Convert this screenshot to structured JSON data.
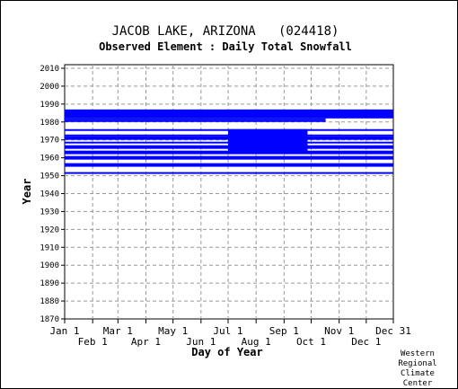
{
  "chart_data": {
    "type": "heatmap",
    "title": "JACOB LAKE, ARIZONA   (024418)",
    "subtitle": "Observed Element : Daily Total Snowfall",
    "xlabel": "Day of Year",
    "ylabel": "Year",
    "xlim": [
      1,
      365
    ],
    "ylim": [
      1870,
      2012
    ],
    "y_ticks": [
      1870,
      1880,
      1890,
      1900,
      1910,
      1920,
      1930,
      1940,
      1950,
      1960,
      1970,
      1980,
      1990,
      2000,
      2010
    ],
    "x_ticks_upper": [
      {
        "label": "Jan 1",
        "day": 1
      },
      {
        "label": "Mar 1",
        "day": 60
      },
      {
        "label": "May 1",
        "day": 121
      },
      {
        "label": "Jul 1",
        "day": 182
      },
      {
        "label": "Sep 1",
        "day": 244
      },
      {
        "label": "Nov 1",
        "day": 305
      },
      {
        "label": "Dec 31",
        "day": 365
      }
    ],
    "x_ticks_lower": [
      {
        "label": "Feb 1",
        "day": 32
      },
      {
        "label": "Apr 1",
        "day": 91
      },
      {
        "label": "Jun 1",
        "day": 152
      },
      {
        "label": "Aug 1",
        "day": 213
      },
      {
        "label": "Oct 1",
        "day": 274
      },
      {
        "label": "Dec 1",
        "day": 335
      }
    ],
    "grid": true,
    "color": "#0000ff",
    "data_coverage": [
      {
        "year_start": 1982,
        "year_end": 1987,
        "day_start": 1,
        "day_end": 365
      },
      {
        "year_start": 1981,
        "year_end": 1982,
        "day_start": 1,
        "day_end": 290
      },
      {
        "year_start": 1980,
        "year_end": 1981,
        "day_start": 1,
        "day_end": 290
      },
      {
        "year_start": 1975,
        "year_end": 1976,
        "day_start": 1,
        "day_end": 365
      },
      {
        "year_start": 1972,
        "year_end": 1973,
        "day_start": 1,
        "day_end": 365
      },
      {
        "year_start": 1970,
        "year_end": 1972,
        "day_start": 1,
        "day_end": 365
      },
      {
        "year_start": 1968,
        "year_end": 1969,
        "day_start": 1,
        "day_end": 365
      },
      {
        "year_start": 1965,
        "year_end": 1967,
        "day_start": 1,
        "day_end": 365
      },
      {
        "year_start": 1962,
        "year_end": 1964,
        "day_start": 1,
        "day_end": 365
      },
      {
        "year_start": 1959,
        "year_end": 1961,
        "day_start": 1,
        "day_end": 365
      },
      {
        "year_start": 1955,
        "year_end": 1957,
        "day_start": 1,
        "day_end": 365
      },
      {
        "year_start": 1951,
        "year_end": 1952,
        "day_start": 1,
        "day_end": 365
      },
      {
        "year_start": 1963,
        "year_end": 1976,
        "day_start": 182,
        "day_end": 270
      }
    ]
  },
  "credit": {
    "line1": "Western",
    "line2": "Regional",
    "line3": "Climate",
    "line4": "Center"
  }
}
